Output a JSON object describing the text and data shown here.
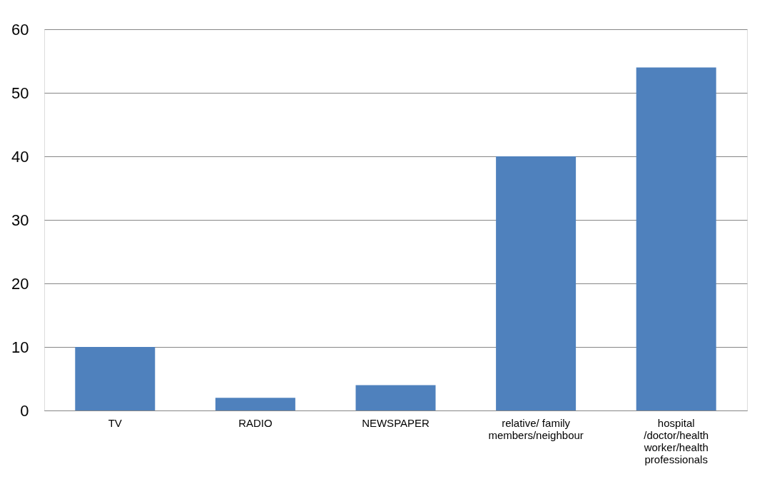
{
  "chart_data": {
    "type": "bar",
    "categories": [
      "TV",
      "RADIO",
      "NEWSPAPER",
      "relative/ family\nmembers/neighbour",
      "hospital\n/doctor/health\nworker/health\nprofessionals"
    ],
    "values": [
      10,
      2,
      4,
      40,
      54
    ],
    "color": "#4f81bd",
    "ylim": [
      0,
      60
    ],
    "yticks": [
      0,
      10,
      20,
      30,
      40,
      50,
      60
    ],
    "grid": "y"
  }
}
